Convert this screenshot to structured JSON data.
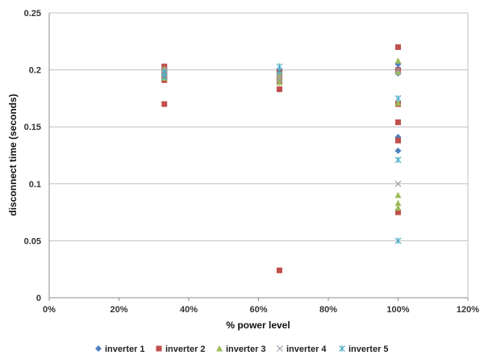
{
  "chart_data": {
    "type": "scatter",
    "title": "",
    "xlabel": "% power level",
    "ylabel": "disconnect time (seconds)",
    "xlim": [
      0,
      1.2
    ],
    "ylim": [
      0,
      0.25
    ],
    "x_ticks": [
      "0%",
      "20%",
      "40%",
      "60%",
      "80%",
      "100%",
      "120%"
    ],
    "y_ticks": [
      "0",
      "0.05",
      "0.1",
      "0.15",
      "0.2",
      "0.25"
    ],
    "grid": "horizontal",
    "legend_position": "bottom",
    "series": [
      {
        "name": "inverter 1",
        "marker": "diamond",
        "color": "#4f81bd",
        "x": [
          0.33,
          0.33,
          0.33,
          0.33,
          0.66,
          0.66,
          0.66,
          0.66,
          1.0,
          1.0,
          1.0,
          1.0,
          1.0
        ],
        "y": [
          0.203,
          0.199,
          0.195,
          0.192,
          0.199,
          0.195,
          0.192,
          0.183,
          0.205,
          0.201,
          0.197,
          0.141,
          0.129
        ]
      },
      {
        "name": "inverter 2",
        "marker": "square",
        "color": "#c0504d",
        "x": [
          0.33,
          0.33,
          0.33,
          0.33,
          0.33,
          0.66,
          0.66,
          0.66,
          0.66,
          0.66,
          1.0,
          1.0,
          1.0,
          1.0,
          1.0,
          1.0
        ],
        "y": [
          0.203,
          0.199,
          0.195,
          0.191,
          0.17,
          0.198,
          0.194,
          0.19,
          0.183,
          0.024,
          0.22,
          0.2,
          0.17,
          0.154,
          0.138,
          0.075
        ]
      },
      {
        "name": "inverter 3",
        "marker": "triangle",
        "color": "#9bbb59",
        "x": [
          0.33,
          0.33,
          0.33,
          0.66,
          0.66,
          0.66,
          1.0,
          1.0,
          1.0,
          1.0,
          1.0,
          1.0
        ],
        "y": [
          0.201,
          0.197,
          0.193,
          0.197,
          0.193,
          0.189,
          0.208,
          0.198,
          0.171,
          0.09,
          0.083,
          0.079
        ]
      },
      {
        "name": "inverter 4",
        "marker": "x",
        "color": "#9d9dad",
        "x": [
          0.33,
          0.33,
          0.66,
          0.66,
          1.0,
          1.0
        ],
        "y": [
          0.2,
          0.196,
          0.196,
          0.192,
          0.2,
          0.1
        ]
      },
      {
        "name": "inverter 5",
        "marker": "star",
        "color": "#4bacc6",
        "x": [
          0.33,
          0.33,
          0.66,
          0.66,
          1.0,
          1.0,
          1.0
        ],
        "y": [
          0.198,
          0.194,
          0.203,
          0.199,
          0.175,
          0.121,
          0.05
        ]
      }
    ]
  }
}
